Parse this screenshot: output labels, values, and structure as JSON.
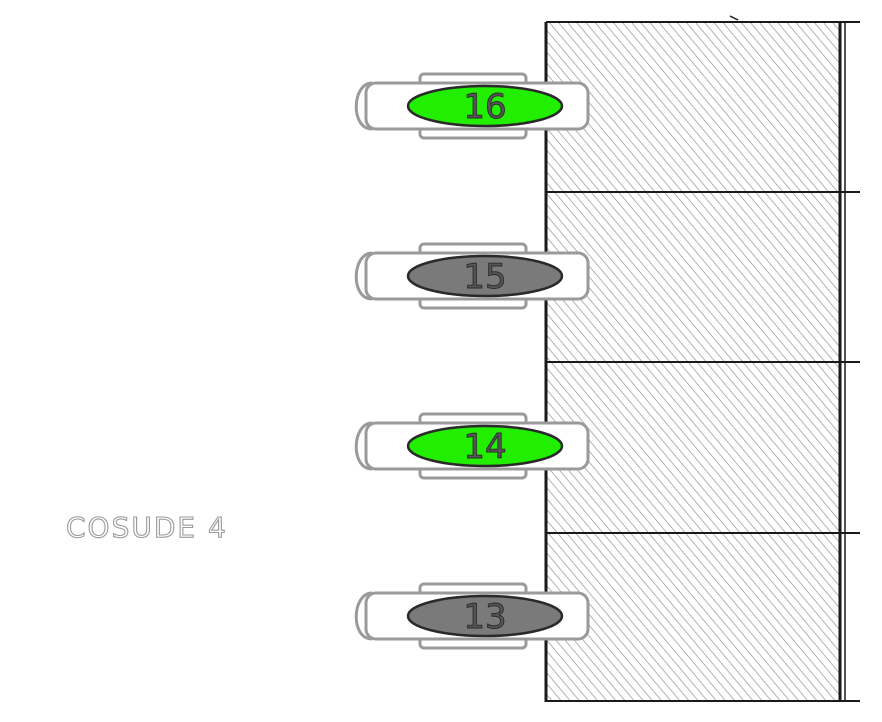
{
  "floorplan": {
    "room_label": "COSUDE   4",
    "seats": [
      {
        "number": "16",
        "status": "occupied",
        "color": "#22ee00"
      },
      {
        "number": "15",
        "status": "free",
        "color": "#7a7a7a"
      },
      {
        "number": "14",
        "status": "occupied",
        "color": "#22ee00"
      },
      {
        "number": "13",
        "status": "free",
        "color": "#7a7a7a"
      }
    ],
    "colors": {
      "occupied": "#22ee00",
      "free": "#7a7a7a",
      "wall_hatch": "#8c8c8c",
      "wall_border": "#1a1a1a"
    }
  }
}
